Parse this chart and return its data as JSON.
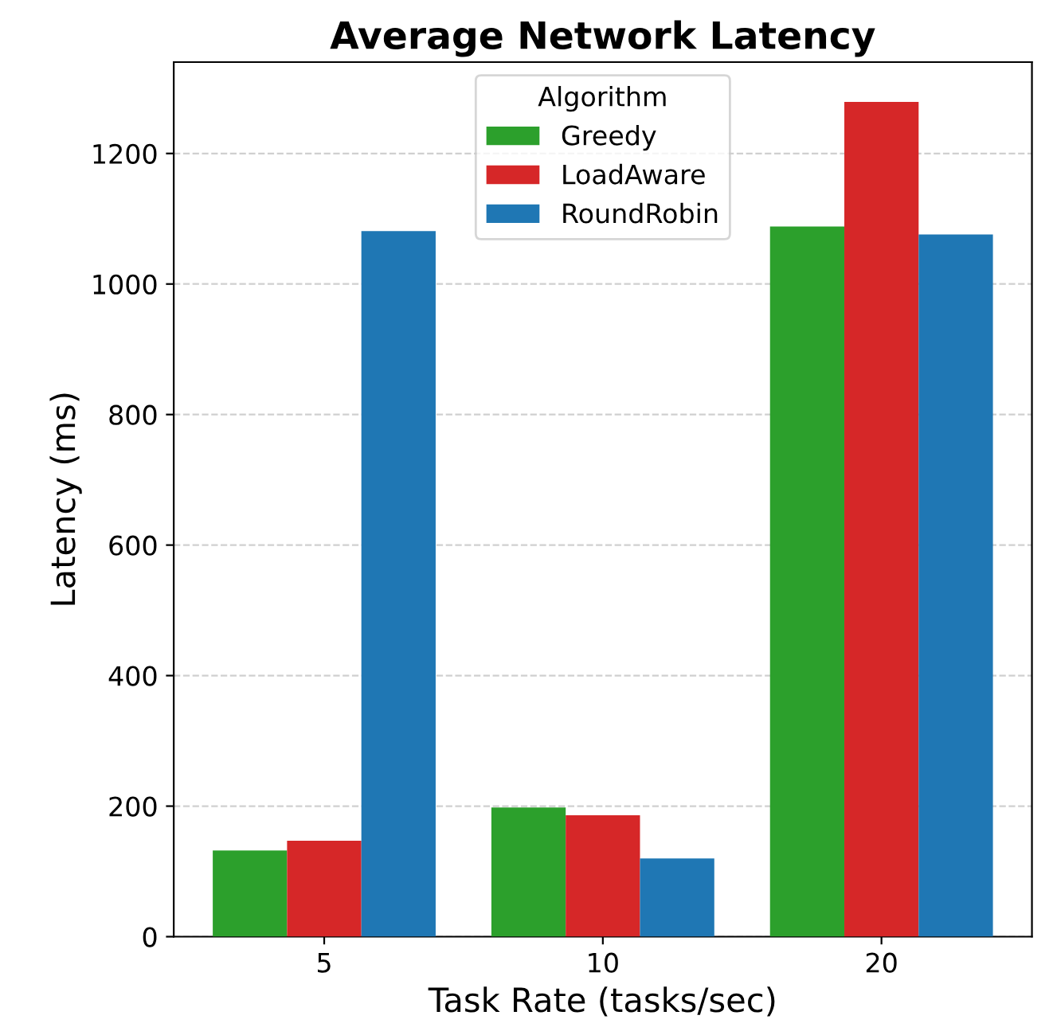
{
  "chart_data": {
    "type": "bar",
    "title": "Average Network Latency",
    "xlabel": "Task Rate (tasks/sec)",
    "ylabel": "Latency (ms)",
    "legend_title": "Algorithm",
    "categories": [
      "5",
      "10",
      "20"
    ],
    "series": [
      {
        "name": "Greedy",
        "color": "#2ca02c",
        "values": [
          132,
          198,
          1088
        ]
      },
      {
        "name": "LoadAware",
        "color": "#d62728",
        "values": [
          147,
          186,
          1279
        ]
      },
      {
        "name": "RoundRobin",
        "color": "#1f77b4",
        "values": [
          1081,
          120,
          1076
        ]
      }
    ],
    "ylim": [
      0,
      1340
    ],
    "yticks": [
      0,
      200,
      400,
      600,
      800,
      1000,
      1200
    ],
    "grid": "y",
    "legend": "top"
  }
}
